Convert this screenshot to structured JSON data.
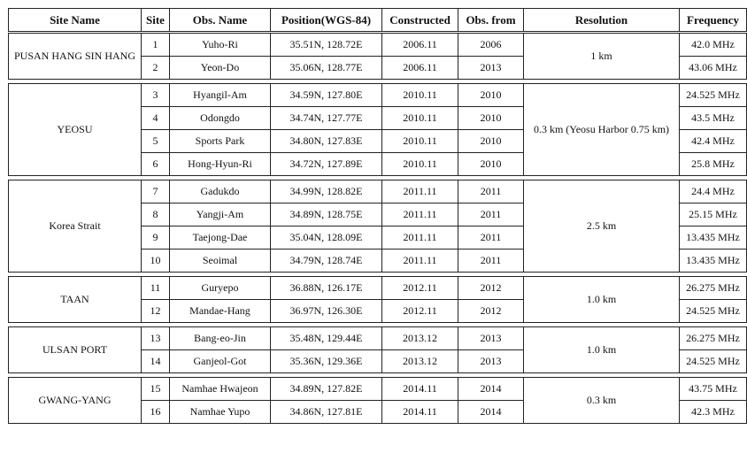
{
  "headers": [
    "Site Name",
    "Site",
    "Obs. Name",
    "Position(WGS-84)",
    "Constructed",
    "Obs. from",
    "Resolution",
    "Frequency"
  ],
  "groups": [
    {
      "name": "PUSAN HANG SIN HANG",
      "resolution": "1 km",
      "rows": [
        {
          "site": "1",
          "obs": "Yuho-Ri",
          "pos": "35.51N, 128.72E",
          "constructed": "2006.11",
          "from": "2006",
          "freq": "42.0 MHz"
        },
        {
          "site": "2",
          "obs": "Yeon-Do",
          "pos": "35.06N, 128.77E",
          "constructed": "2006.11",
          "from": "2013",
          "freq": "43.06 MHz"
        }
      ]
    },
    {
      "name": "YEOSU",
      "resolution": "0.3 km (Yeosu Harbor 0.75 km)",
      "rows": [
        {
          "site": "3",
          "obs": "Hyangil-Am",
          "pos": "34.59N, 127.80E",
          "constructed": "2010.11",
          "from": "2010",
          "freq": "24.525 MHz"
        },
        {
          "site": "4",
          "obs": "Odongdo",
          "pos": "34.74N, 127.77E",
          "constructed": "2010.11",
          "from": "2010",
          "freq": "43.5 MHz"
        },
        {
          "site": "5",
          "obs": "Sports Park",
          "pos": "34.80N, 127.83E",
          "constructed": "2010.11",
          "from": "2010",
          "freq": "42.4 MHz"
        },
        {
          "site": "6",
          "obs": "Hong-Hyun-Ri",
          "pos": "34.72N, 127.89E",
          "constructed": "2010.11",
          "from": "2010",
          "freq": "25.8 MHz"
        }
      ]
    },
    {
      "name": "Korea Strait",
      "resolution": "2.5 km",
      "rows": [
        {
          "site": "7",
          "obs": "Gadukdo",
          "pos": "34.99N, 128.82E",
          "constructed": "2011.11",
          "from": "2011",
          "freq": "24.4 MHz"
        },
        {
          "site": "8",
          "obs": "Yangji-Am",
          "pos": "34.89N, 128.75E",
          "constructed": "2011.11",
          "from": "2011",
          "freq": "25.15 MHz"
        },
        {
          "site": "9",
          "obs": "Taejong-Dae",
          "pos": "35.04N, 128.09E",
          "constructed": "2011.11",
          "from": "2011",
          "freq": "13.435 MHz"
        },
        {
          "site": "10",
          "obs": "Seoimal",
          "pos": "34.79N, 128.74E",
          "constructed": "2011.11",
          "from": "2011",
          "freq": "13.435 MHz"
        }
      ]
    },
    {
      "name": "TAAN",
      "resolution": "1.0 km",
      "rows": [
        {
          "site": "11",
          "obs": "Guryepo",
          "pos": "36.88N, 126.17E",
          "constructed": "2012.11",
          "from": "2012",
          "freq": "26.275 MHz"
        },
        {
          "site": "12",
          "obs": "Mandae-Hang",
          "pos": "36.97N, 126.30E",
          "constructed": "2012.11",
          "from": "2012",
          "freq": "24.525 MHz"
        }
      ]
    },
    {
      "name": "ULSAN PORT",
      "resolution": "1.0 km",
      "rows": [
        {
          "site": "13",
          "obs": "Bang-eo-Jin",
          "pos": "35.48N, 129.44E",
          "constructed": "2013.12",
          "from": "2013",
          "freq": "26.275 MHz"
        },
        {
          "site": "14",
          "obs": "Ganjeol-Got",
          "pos": "35.36N, 129.36E",
          "constructed": "2013.12",
          "from": "2013",
          "freq": "24.525 MHz"
        }
      ]
    },
    {
      "name": "GWANG-YANG",
      "resolution": "0.3 km",
      "rows": [
        {
          "site": "15",
          "obs": "Namhae Hwajeon",
          "pos": "34.89N, 127.82E",
          "constructed": "2014.11",
          "from": "2014",
          "freq": "43.75 MHz"
        },
        {
          "site": "16",
          "obs": "Namhae Yupo",
          "pos": "34.86N, 127.81E",
          "constructed": "2014.11",
          "from": "2014",
          "freq": "42.3 MHz"
        }
      ]
    }
  ]
}
